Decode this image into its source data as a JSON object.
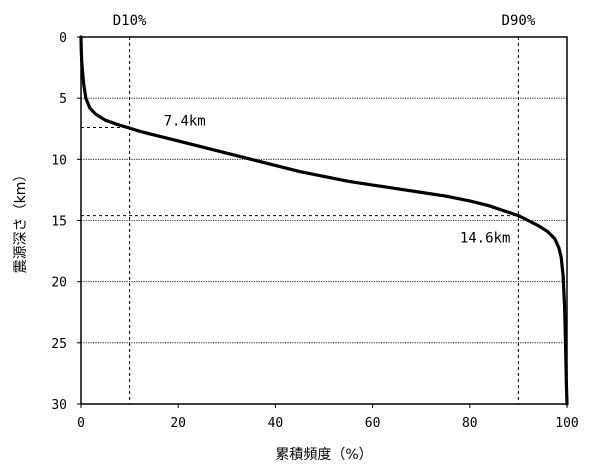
{
  "chart_data": {
    "type": "line",
    "xlabel": "累積頻度（%）",
    "ylabel": "震源深さ（km）",
    "xlim": [
      0,
      100
    ],
    "ylim": [
      0,
      30
    ],
    "y_inverted": true,
    "grid": "horizontal",
    "xticks": [
      "0",
      "20",
      "40",
      "60",
      "80",
      "100"
    ],
    "yticks": [
      "0",
      "5",
      "10",
      "15",
      "20",
      "25",
      "30"
    ],
    "series": [
      {
        "color": "#000000",
        "points": [
          [
            0,
            0
          ],
          [
            0.05,
            1.0
          ],
          [
            0.15,
            2.0
          ],
          [
            0.35,
            3.0
          ],
          [
            0.6,
            4.0
          ],
          [
            1.0,
            5.0
          ],
          [
            1.8,
            5.8
          ],
          [
            3.0,
            6.3
          ],
          [
            5.0,
            6.8
          ],
          [
            7.5,
            7.15
          ],
          [
            10,
            7.45
          ],
          [
            12,
            7.7
          ],
          [
            14,
            7.9
          ],
          [
            17,
            8.2
          ],
          [
            20,
            8.5
          ],
          [
            25,
            9.0
          ],
          [
            30,
            9.5
          ],
          [
            35,
            10.0
          ],
          [
            40,
            10.5
          ],
          [
            45,
            11.0
          ],
          [
            50,
            11.4
          ],
          [
            55,
            11.8
          ],
          [
            60,
            12.1
          ],
          [
            65,
            12.4
          ],
          [
            70,
            12.7
          ],
          [
            75,
            13.0
          ],
          [
            80,
            13.4
          ],
          [
            84,
            13.8
          ],
          [
            87,
            14.2
          ],
          [
            90,
            14.6
          ],
          [
            92,
            15.0
          ],
          [
            94,
            15.4
          ],
          [
            96,
            15.9
          ],
          [
            97.5,
            16.5
          ],
          [
            98.3,
            17.2
          ],
          [
            98.8,
            18.0
          ],
          [
            99.2,
            19.5
          ],
          [
            99.5,
            22.0
          ],
          [
            99.7,
            25.0
          ],
          [
            99.85,
            28.0
          ],
          [
            100,
            30.0
          ]
        ]
      }
    ],
    "annotations": [
      {
        "text": "D10%",
        "x": 10
      },
      {
        "text": "D90%",
        "x": 90
      },
      {
        "text": "7.4km",
        "x": 10,
        "y": 7.4
      },
      {
        "text": "14.6km",
        "x": 90,
        "y": 14.6
      }
    ]
  }
}
